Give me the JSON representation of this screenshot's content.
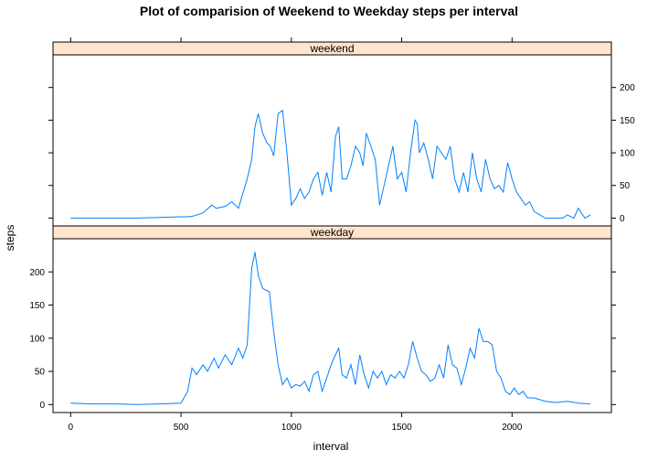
{
  "chart_data": {
    "type": "line",
    "title": "Plot of comparision of Weekend to Weekday steps per interval",
    "xlabel": "interval",
    "ylabel": "steps",
    "xlim": [
      -80,
      2450
    ],
    "ylim": [
      -12,
      250
    ],
    "x_ticks": [
      0,
      500,
      1000,
      1500,
      2000
    ],
    "y_ticks": [
      0,
      50,
      100,
      150,
      200
    ],
    "line_color": "#0080ff",
    "strip_color": "#ffe5cc",
    "panels": [
      {
        "name": "weekend",
        "x": [
          0,
          100,
          200,
          300,
          400,
          500,
          530,
          555,
          600,
          640,
          660,
          700,
          730,
          760,
          800,
          820,
          835,
          850,
          870,
          890,
          905,
          920,
          940,
          960,
          980,
          1000,
          1020,
          1040,
          1060,
          1080,
          1100,
          1120,
          1140,
          1160,
          1180,
          1200,
          1215,
          1230,
          1250,
          1270,
          1290,
          1310,
          1325,
          1340,
          1360,
          1380,
          1400,
          1420,
          1440,
          1460,
          1480,
          1500,
          1520,
          1540,
          1560,
          1570,
          1580,
          1600,
          1620,
          1640,
          1660,
          1680,
          1700,
          1720,
          1740,
          1760,
          1780,
          1800,
          1820,
          1840,
          1860,
          1880,
          1900,
          1920,
          1940,
          1960,
          1980,
          2000,
          2020,
          2040,
          2060,
          2080,
          2100,
          2150,
          2200,
          2230,
          2250,
          2280,
          2300,
          2330,
          2355
        ],
        "y": [
          0,
          0,
          0,
          0,
          1,
          2,
          2,
          3,
          8,
          20,
          15,
          18,
          25,
          15,
          60,
          90,
          140,
          160,
          130,
          115,
          110,
          95,
          160,
          165,
          100,
          20,
          30,
          45,
          30,
          40,
          60,
          70,
          35,
          70,
          40,
          125,
          140,
          60,
          60,
          80,
          110,
          100,
          80,
          130,
          110,
          90,
          20,
          50,
          80,
          110,
          60,
          70,
          40,
          100,
          150,
          145,
          100,
          115,
          90,
          60,
          110,
          100,
          90,
          110,
          60,
          40,
          70,
          40,
          100,
          60,
          40,
          90,
          60,
          45,
          50,
          40,
          85,
          60,
          40,
          30,
          20,
          25,
          10,
          0,
          0,
          0,
          5,
          0,
          15,
          0,
          5
        ]
      },
      {
        "name": "weekday",
        "x": [
          0,
          100,
          200,
          300,
          400,
          500,
          530,
          550,
          570,
          600,
          620,
          650,
          670,
          700,
          730,
          760,
          780,
          800,
          820,
          835,
          850,
          870,
          900,
          920,
          940,
          960,
          980,
          1000,
          1020,
          1040,
          1060,
          1080,
          1100,
          1120,
          1140,
          1160,
          1180,
          1200,
          1215,
          1230,
          1250,
          1270,
          1290,
          1310,
          1330,
          1350,
          1370,
          1390,
          1410,
          1430,
          1450,
          1470,
          1490,
          1510,
          1530,
          1550,
          1570,
          1590,
          1610,
          1630,
          1650,
          1670,
          1690,
          1710,
          1730,
          1750,
          1770,
          1790,
          1810,
          1830,
          1850,
          1870,
          1890,
          1910,
          1930,
          1950,
          1970,
          1990,
          2010,
          2030,
          2050,
          2070,
          2100,
          2150,
          2200,
          2250,
          2300,
          2355
        ],
        "y": [
          2,
          1,
          1,
          0,
          1,
          2,
          20,
          55,
          45,
          60,
          50,
          70,
          55,
          75,
          60,
          85,
          70,
          90,
          205,
          230,
          195,
          175,
          170,
          110,
          60,
          30,
          40,
          25,
          30,
          28,
          35,
          20,
          45,
          50,
          20,
          40,
          60,
          75,
          85,
          45,
          40,
          60,
          30,
          75,
          45,
          25,
          50,
          40,
          50,
          30,
          45,
          40,
          50,
          40,
          60,
          95,
          70,
          50,
          45,
          35,
          40,
          60,
          40,
          90,
          60,
          55,
          30,
          55,
          85,
          70,
          115,
          95,
          95,
          90,
          50,
          40,
          20,
          15,
          25,
          15,
          20,
          10,
          10,
          5,
          3,
          5,
          2,
          1
        ]
      }
    ]
  }
}
